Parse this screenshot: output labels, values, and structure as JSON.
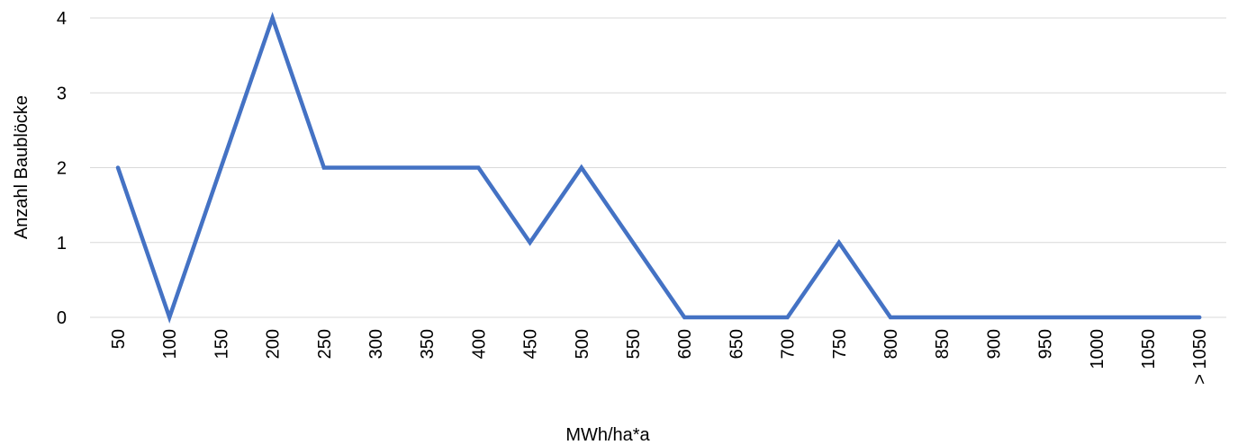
{
  "chart_data": {
    "type": "line",
    "categories": [
      "50",
      "100",
      "150",
      "200",
      "250",
      "300",
      "350",
      "400",
      "450",
      "500",
      "550",
      "600",
      "650",
      "700",
      "750",
      "800",
      "850",
      "900",
      "950",
      "1000",
      "1050",
      "> 1050"
    ],
    "series": [
      {
        "values": [
          2,
          0,
          2,
          4,
          2,
          2,
          2,
          2,
          1,
          2,
          1,
          0,
          0,
          0,
          1,
          0,
          0,
          0,
          0,
          0,
          0,
          0
        ]
      }
    ],
    "xlabel": "MWh/ha*a",
    "ylabel": "Anzahl Baublöcke",
    "ylim": [
      0,
      4
    ],
    "yticks": [
      0,
      1,
      2,
      3,
      4
    ],
    "grid": true,
    "legend": "none",
    "colors": {
      "line": "#4472C4",
      "grid": "#d9d9d9"
    }
  }
}
